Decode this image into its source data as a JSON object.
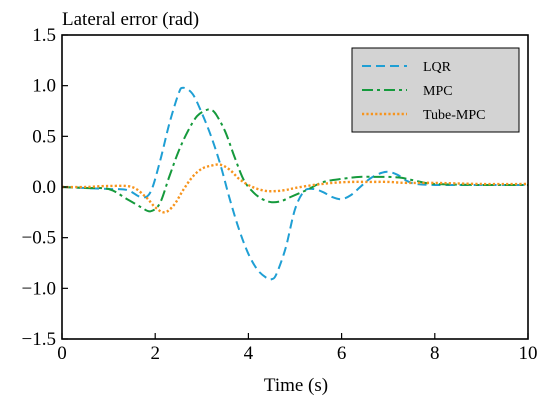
{
  "chart_data": {
    "type": "line",
    "title": "",
    "ylabel": "Lateral error (rad)",
    "xlabel": "Time (s)",
    "xlim": [
      0,
      10
    ],
    "ylim": [
      -1.5,
      1.5
    ],
    "xticks": [
      0,
      2,
      4,
      6,
      8,
      10
    ],
    "yticks": [
      1.5,
      1.0,
      0.5,
      0.0,
      -0.5,
      -1.0,
      -1.5
    ],
    "ytick_labels": [
      "1.5",
      "1.0",
      "0.5",
      "0.0",
      "−0.5",
      "−1.0",
      "−1.5"
    ],
    "grid": false,
    "legend_position": "top-right",
    "legend_background": "#d3d3d3",
    "series": [
      {
        "name": "LQR",
        "color": "#1f9fd4",
        "style": "dashed",
        "x": [
          0,
          0.5,
          1.0,
          1.4,
          1.7,
          1.9,
          2.1,
          2.3,
          2.5,
          2.6,
          2.8,
          3.0,
          3.2,
          3.4,
          3.6,
          3.8,
          4.0,
          4.2,
          4.4,
          4.5,
          4.6,
          4.8,
          5.0,
          5.2,
          5.4,
          5.6,
          5.8,
          6.0,
          6.2,
          6.4,
          6.6,
          6.8,
          7.0,
          7.2,
          7.4,
          7.6,
          8.0,
          9.0,
          10.0
        ],
        "y": [
          0.0,
          -0.01,
          -0.02,
          -0.03,
          -0.1,
          -0.05,
          0.25,
          0.62,
          0.92,
          0.98,
          0.92,
          0.73,
          0.5,
          0.22,
          -0.12,
          -0.42,
          -0.66,
          -0.82,
          -0.9,
          -0.91,
          -0.86,
          -0.6,
          -0.22,
          -0.04,
          -0.02,
          -0.05,
          -0.1,
          -0.12,
          -0.08,
          0.0,
          0.08,
          0.13,
          0.15,
          0.12,
          0.06,
          0.03,
          0.02,
          0.02,
          0.02
        ]
      },
      {
        "name": "MPC",
        "color": "#159a3c",
        "style": "dashdot",
        "x": [
          0,
          0.5,
          1.0,
          1.4,
          1.7,
          1.9,
          2.1,
          2.3,
          2.5,
          2.7,
          2.9,
          3.1,
          3.2,
          3.3,
          3.5,
          3.7,
          3.9,
          4.1,
          4.3,
          4.5,
          4.7,
          4.9,
          5.1,
          5.3,
          5.5,
          5.7,
          6.0,
          6.4,
          6.8,
          7.0,
          7.3,
          7.6,
          8.0,
          9.0,
          10.0
        ],
        "y": [
          0.0,
          -0.01,
          -0.02,
          -0.12,
          -0.2,
          -0.24,
          -0.16,
          0.1,
          0.35,
          0.55,
          0.7,
          0.76,
          0.76,
          0.72,
          0.55,
          0.3,
          0.07,
          -0.05,
          -0.12,
          -0.15,
          -0.14,
          -0.1,
          -0.06,
          -0.02,
          0.03,
          0.06,
          0.08,
          0.1,
          0.1,
          0.1,
          0.09,
          0.06,
          0.03,
          0.02,
          0.02
        ]
      },
      {
        "name": "Tube-MPC",
        "color": "#f7941d",
        "style": "dotted",
        "x": [
          0,
          0.5,
          1.0,
          1.5,
          1.8,
          2.0,
          2.2,
          2.4,
          2.6,
          2.8,
          3.0,
          3.2,
          3.4,
          3.6,
          3.8,
          4.0,
          4.2,
          4.4,
          4.6,
          4.8,
          5.0,
          5.4,
          5.8,
          6.2,
          6.6,
          7.0,
          7.4,
          8.0,
          9.0,
          10.0
        ],
        "y": [
          0.0,
          0.0,
          0.01,
          0.0,
          -0.1,
          -0.2,
          -0.25,
          -0.18,
          -0.03,
          0.1,
          0.18,
          0.21,
          0.22,
          0.17,
          0.08,
          0.02,
          -0.02,
          -0.04,
          -0.04,
          -0.03,
          -0.01,
          0.02,
          0.04,
          0.05,
          0.05,
          0.05,
          0.04,
          0.04,
          0.03,
          0.03
        ]
      }
    ]
  }
}
